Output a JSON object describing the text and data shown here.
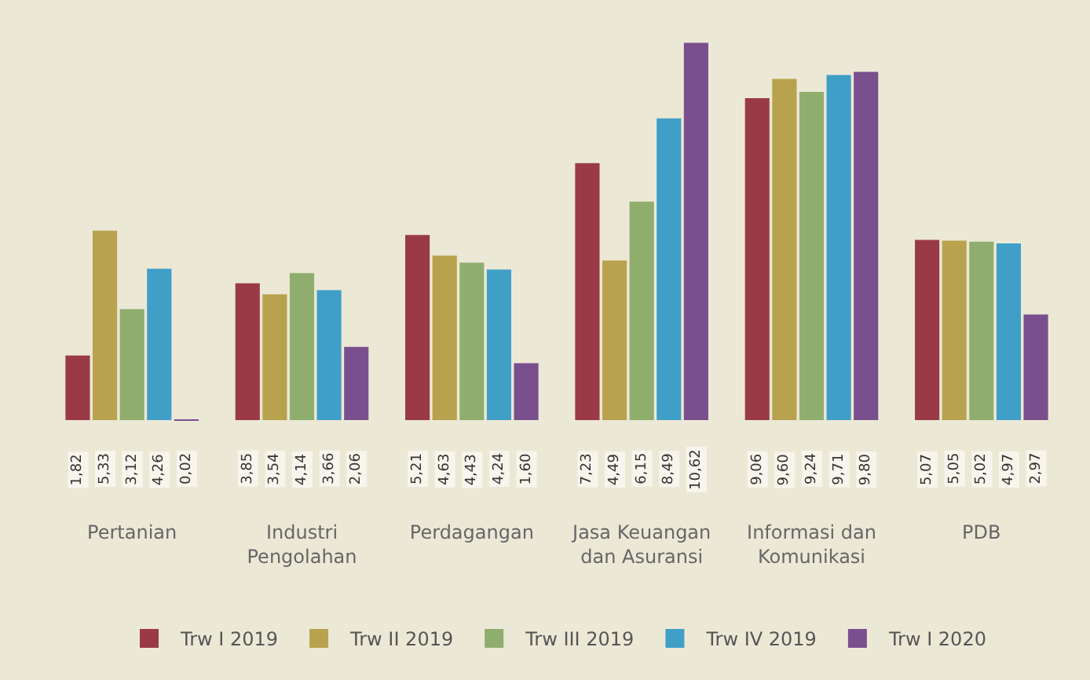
{
  "chart_data": {
    "type": "bar",
    "categories": [
      "Pertanian",
      "Industri\nPengolahan",
      "Perdagangan",
      "Jasa Keuangan\ndan Asuransi",
      "Informasi dan\nKomunikasi",
      "PDB"
    ],
    "series": [
      {
        "name": "Trw I 2019",
        "color": "#9b3a47",
        "values": [
          1.82,
          3.85,
          5.21,
          7.23,
          9.06,
          5.07
        ],
        "value_labels": [
          "1,82",
          "3,85",
          "5,21",
          "7,23",
          "9,06",
          "5,07"
        ]
      },
      {
        "name": "Trw II 2019",
        "color": "#b8a24d",
        "values": [
          5.33,
          3.54,
          4.63,
          4.49,
          9.6,
          5.05
        ],
        "value_labels": [
          "5,33",
          "3,54",
          "4,63",
          "4,49",
          "9,60",
          "5,05"
        ]
      },
      {
        "name": "Trw III 2019",
        "color": "#8fae6e",
        "values": [
          3.12,
          4.14,
          4.43,
          6.15,
          9.24,
          5.02
        ],
        "value_labels": [
          "3,12",
          "4,14",
          "4,43",
          "6,15",
          "9,24",
          "5,02"
        ]
      },
      {
        "name": "Trw IV 2019",
        "color": "#3f9fc7",
        "values": [
          4.26,
          3.66,
          4.24,
          8.49,
          9.71,
          4.97
        ],
        "value_labels": [
          "4,26",
          "3,66",
          "4,24",
          "8,49",
          "9,71",
          "4,97"
        ]
      },
      {
        "name": "Trw I 2020",
        "color": "#7a4f8e",
        "values": [
          0.02,
          2.06,
          1.6,
          10.62,
          9.8,
          2.97
        ],
        "value_labels": [
          "0,02",
          "2,06",
          "1,60",
          "10,62",
          "9,80",
          "2,97"
        ]
      }
    ],
    "legend": "bottom"
  }
}
